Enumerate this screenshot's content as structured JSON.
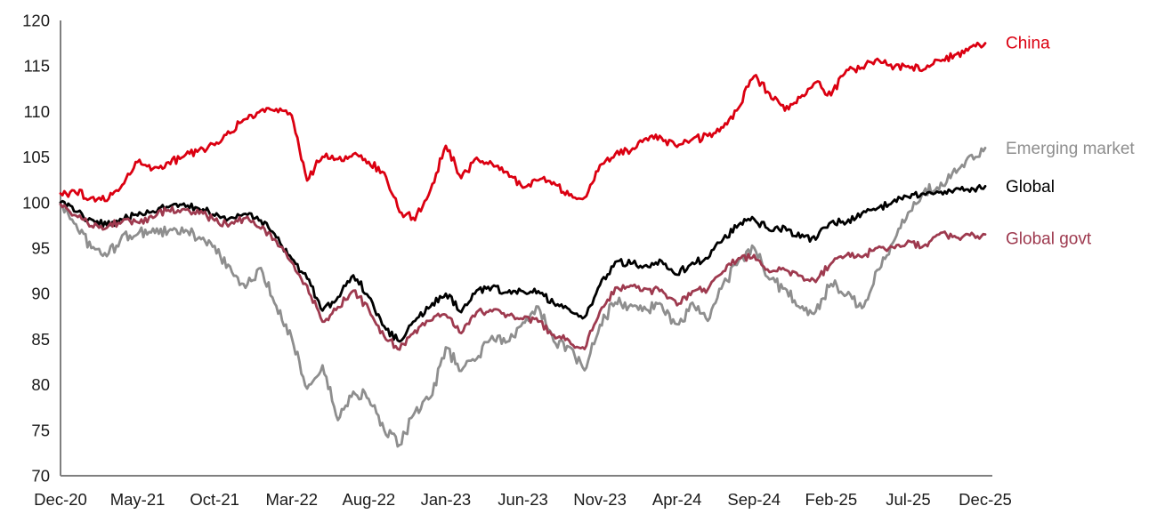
{
  "chart_data": {
    "type": "line",
    "title": "",
    "xlabel": "",
    "ylabel": "",
    "ylim": [
      70,
      120
    ],
    "y_ticks": [
      70,
      75,
      80,
      85,
      90,
      95,
      100,
      105,
      110,
      115,
      120
    ],
    "x_tick_labels": [
      "Dec-20",
      "May-21",
      "Oct-21",
      "Mar-22",
      "Aug-22",
      "Jan-23",
      "Jun-23",
      "Nov-23",
      "Apr-24",
      "Sep-24",
      "Feb-25",
      "Jul-25",
      "Dec-25"
    ],
    "x_tick_month_indexes": [
      0,
      5,
      10,
      15,
      20,
      25,
      30,
      35,
      40,
      45,
      50,
      55,
      60
    ],
    "x_frequency": "monthly",
    "grid": false,
    "legend_position": "right-end-labels",
    "axis_color": "#7f7f7f",
    "x_months": [
      "Dec-20",
      "Jan-21",
      "Feb-21",
      "Mar-21",
      "Apr-21",
      "May-21",
      "Jun-21",
      "Jul-21",
      "Aug-21",
      "Sep-21",
      "Oct-21",
      "Nov-21",
      "Dec-21",
      "Jan-22",
      "Feb-22",
      "Mar-22",
      "Apr-22",
      "May-22",
      "Jun-22",
      "Jul-22",
      "Aug-22",
      "Sep-22",
      "Oct-22",
      "Nov-22",
      "Dec-22",
      "Jan-23",
      "Feb-23",
      "Mar-23",
      "Apr-23",
      "May-23",
      "Jun-23",
      "Jul-23",
      "Aug-23",
      "Sep-23",
      "Oct-23",
      "Nov-23",
      "Dec-23",
      "Jan-24",
      "Feb-24",
      "Mar-24",
      "Apr-24",
      "May-24",
      "Jun-24",
      "Jul-24",
      "Aug-24",
      "Sep-24",
      "Oct-24",
      "Nov-24",
      "Dec-24",
      "Jan-25",
      "Feb-25",
      "Mar-25",
      "Apr-25",
      "May-25",
      "Jun-25",
      "Jul-25",
      "Aug-25",
      "Sep-25",
      "Oct-25",
      "Nov-25",
      "Dec-25"
    ],
    "series": [
      {
        "name": "China",
        "color": "#db0011",
        "values": [
          101.0,
          101.2,
          100.5,
          100.3,
          102.0,
          104.5,
          103.7,
          104.3,
          105.1,
          105.7,
          106.4,
          107.7,
          109.2,
          110.0,
          110.3,
          109.6,
          102.5,
          105.2,
          104.7,
          105.3,
          104.5,
          103.2,
          99.0,
          98.2,
          101.4,
          106.2,
          102.8,
          104.8,
          104.2,
          103.3,
          101.5,
          102.6,
          102.1,
          100.8,
          100.5,
          104.0,
          105.4,
          105.7,
          107.0,
          107.1,
          106.2,
          106.8,
          107.4,
          108.2,
          110.5,
          114.0,
          111.9,
          110.2,
          111.7,
          113.2,
          111.8,
          114.5,
          114.9,
          115.8,
          114.8,
          115.1,
          114.6,
          115.6,
          116.2,
          116.9,
          117.5
        ]
      },
      {
        "name": "Emerging market",
        "color": "#8e8e8e",
        "values": [
          99.8,
          97.6,
          95.0,
          94.2,
          96.2,
          96.6,
          97.0,
          96.7,
          96.9,
          96.1,
          95.0,
          92.8,
          90.8,
          92.6,
          88.5,
          85.3,
          79.5,
          82.0,
          76.2,
          79.3,
          78.6,
          74.9,
          73.4,
          77.0,
          78.5,
          84.0,
          81.6,
          83.0,
          85.2,
          84.6,
          87.0,
          88.5,
          84.8,
          84.0,
          81.5,
          86.5,
          89.2,
          88.6,
          88.3,
          88.6,
          86.5,
          88.8,
          87.0,
          91.0,
          93.5,
          95.2,
          91.5,
          90.5,
          88.6,
          88.0,
          91.2,
          90.0,
          88.5,
          92.5,
          95.5,
          99.0,
          101.3,
          101.5,
          103.5,
          105.0,
          106.0
        ]
      },
      {
        "name": "Global",
        "color": "#000000",
        "values": [
          100.0,
          99.0,
          98.0,
          97.6,
          98.2,
          98.6,
          99.0,
          99.5,
          99.8,
          99.4,
          98.6,
          98.2,
          98.8,
          98.0,
          96.2,
          93.8,
          91.8,
          88.0,
          89.5,
          92.0,
          89.8,
          86.3,
          84.8,
          87.0,
          88.6,
          90.0,
          88.0,
          90.3,
          90.7,
          90.2,
          90.4,
          90.2,
          89.0,
          88.3,
          87.3,
          91.0,
          93.5,
          93.4,
          93.1,
          93.6,
          92.2,
          93.3,
          93.9,
          96.0,
          97.6,
          98.2,
          97.0,
          97.2,
          96.3,
          96.0,
          98.0,
          97.8,
          98.8,
          99.3,
          100.1,
          100.5,
          101.0,
          101.1,
          101.4,
          101.3,
          101.8
        ]
      },
      {
        "name": "Global govt",
        "color": "#9e3a4f",
        "values": [
          99.8,
          98.6,
          97.4,
          97.3,
          97.9,
          97.8,
          98.4,
          99.3,
          99.2,
          98.9,
          98.1,
          97.6,
          98.3,
          97.3,
          95.8,
          93.3,
          90.8,
          86.8,
          88.5,
          90.4,
          88.3,
          85.2,
          84.0,
          85.8,
          87.0,
          87.8,
          85.6,
          88.0,
          88.2,
          87.6,
          87.3,
          87.0,
          85.4,
          84.8,
          84.0,
          88.0,
          90.5,
          90.8,
          90.4,
          90.3,
          88.8,
          90.2,
          90.4,
          92.6,
          93.8,
          94.2,
          92.4,
          92.7,
          91.9,
          91.4,
          93.3,
          94.3,
          94.1,
          94.9,
          95.1,
          95.7,
          95.2,
          96.5,
          96.3,
          96.4,
          96.5
        ]
      }
    ]
  }
}
